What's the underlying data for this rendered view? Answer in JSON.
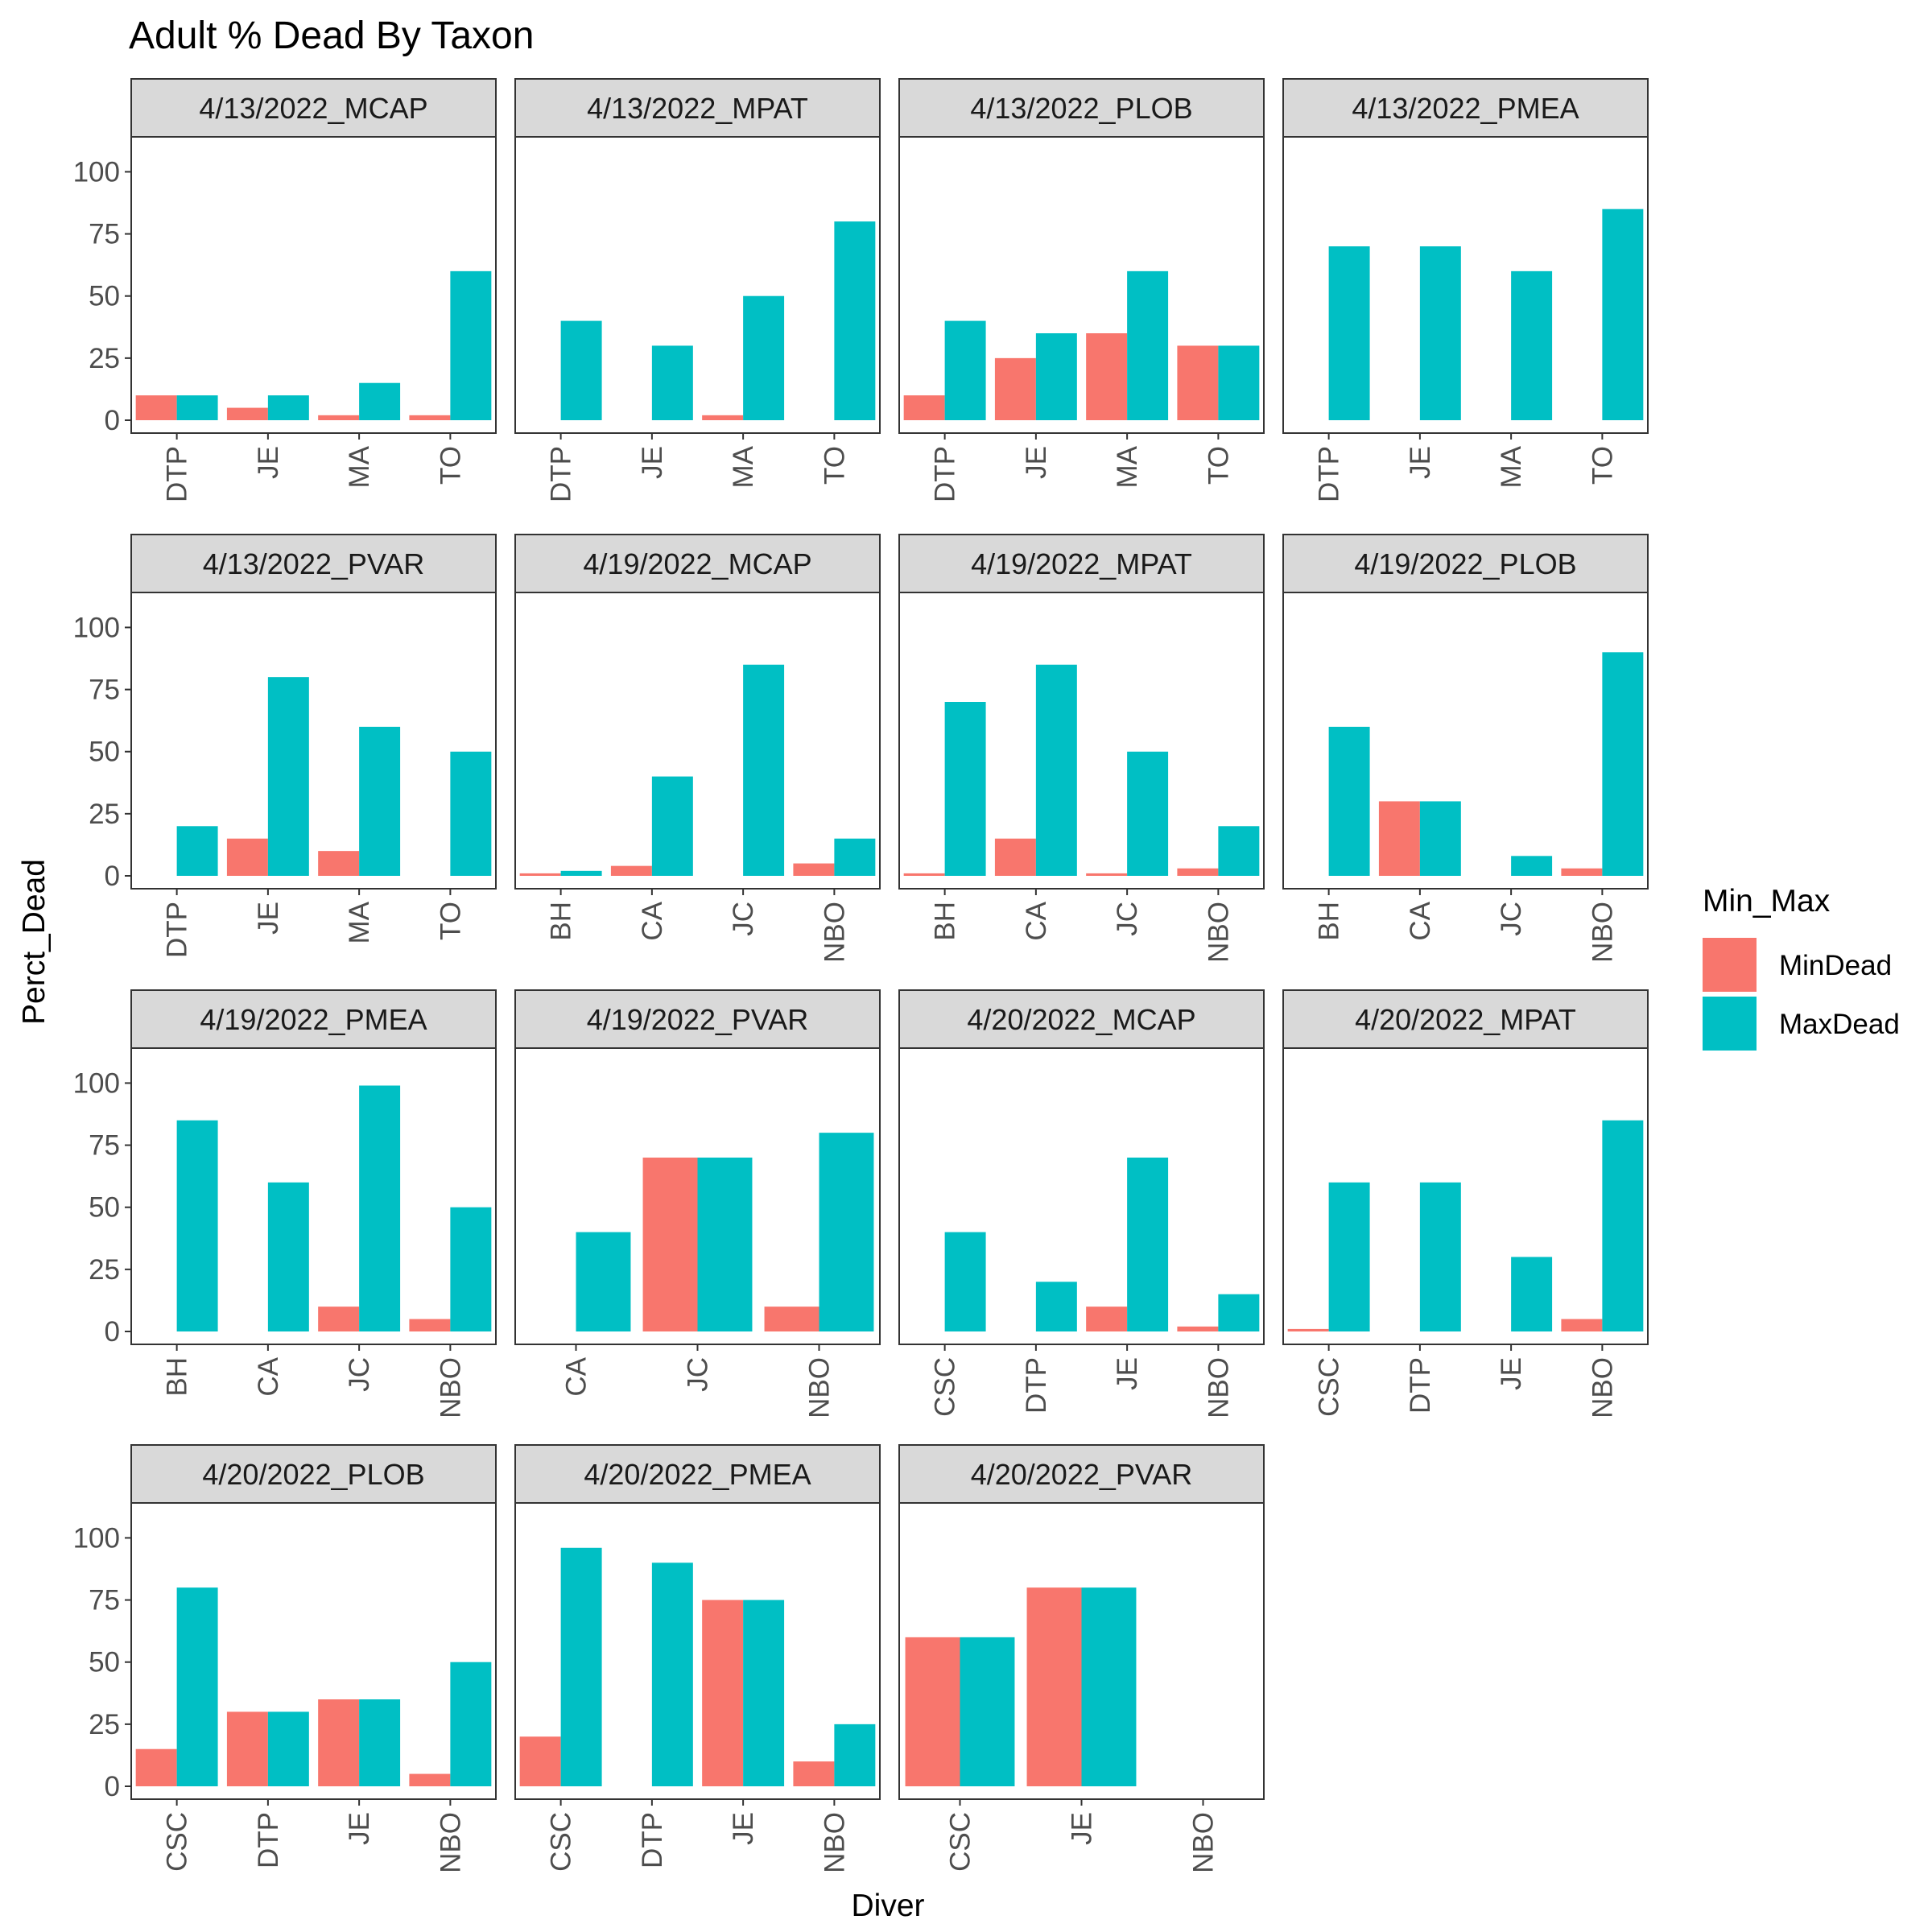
{
  "chart_data": {
    "type": "bar",
    "title": "Adult % Dead By Taxon",
    "xlabel": "Diver",
    "ylabel": "Perct_Dead",
    "ylim": [
      0,
      120
    ],
    "yticks": [
      0,
      25,
      50,
      75,
      100
    ],
    "grid": false,
    "legend": {
      "title": "Min_Max",
      "position": "right",
      "entries": [
        {
          "name": "MinDead",
          "color": "#F8766D"
        },
        {
          "name": "MaxDead",
          "color": "#00BFC4"
        }
      ]
    },
    "facets": [
      {
        "label": "4/13/2022_MCAP",
        "categories": [
          "DTP",
          "JE",
          "MA",
          "TO"
        ],
        "series": [
          {
            "name": "MinDead",
            "values": [
              10,
              5,
              2,
              2
            ]
          },
          {
            "name": "MaxDead",
            "values": [
              10,
              10,
              15,
              60
            ]
          }
        ]
      },
      {
        "label": "4/13/2022_MPAT",
        "categories": [
          "DTP",
          "JE",
          "MA",
          "TO"
        ],
        "series": [
          {
            "name": "MinDead",
            "values": [
              null,
              null,
              2,
              null
            ]
          },
          {
            "name": "MaxDead",
            "values": [
              40,
              30,
              50,
              80
            ]
          }
        ]
      },
      {
        "label": "4/13/2022_PLOB",
        "categories": [
          "DTP",
          "JE",
          "MA",
          "TO"
        ],
        "series": [
          {
            "name": "MinDead",
            "values": [
              10,
              25,
              35,
              30
            ]
          },
          {
            "name": "MaxDead",
            "values": [
              40,
              35,
              60,
              30
            ]
          }
        ]
      },
      {
        "label": "4/13/2022_PMEA",
        "categories": [
          "DTP",
          "JE",
          "MA",
          "TO"
        ],
        "series": [
          {
            "name": "MinDead",
            "values": [
              null,
              null,
              null,
              null
            ]
          },
          {
            "name": "MaxDead",
            "values": [
              70,
              70,
              60,
              85
            ]
          }
        ]
      },
      {
        "label": "4/13/2022_PVAR",
        "categories": [
          "DTP",
          "JE",
          "MA",
          "TO"
        ],
        "series": [
          {
            "name": "MinDead",
            "values": [
              null,
              15,
              10,
              null
            ]
          },
          {
            "name": "MaxDead",
            "values": [
              20,
              80,
              60,
              50
            ]
          }
        ]
      },
      {
        "label": "4/19/2022_MCAP",
        "categories": [
          "BH",
          "CA",
          "JC",
          "NBO"
        ],
        "series": [
          {
            "name": "MinDead",
            "values": [
              1,
              4,
              null,
              5
            ]
          },
          {
            "name": "MaxDead",
            "values": [
              2,
              40,
              85,
              15
            ]
          }
        ]
      },
      {
        "label": "4/19/2022_MPAT",
        "categories": [
          "BH",
          "CA",
          "JC",
          "NBO"
        ],
        "series": [
          {
            "name": "MinDead",
            "values": [
              1,
              15,
              1,
              3
            ]
          },
          {
            "name": "MaxDead",
            "values": [
              70,
              85,
              50,
              20
            ]
          }
        ]
      },
      {
        "label": "4/19/2022_PLOB",
        "categories": [
          "BH",
          "CA",
          "JC",
          "NBO"
        ],
        "series": [
          {
            "name": "MinDead",
            "values": [
              null,
              30,
              null,
              3
            ]
          },
          {
            "name": "MaxDead",
            "values": [
              60,
              30,
              8,
              90
            ]
          }
        ]
      },
      {
        "label": "4/19/2022_PMEA",
        "categories": [
          "BH",
          "CA",
          "JC",
          "NBO"
        ],
        "series": [
          {
            "name": "MinDead",
            "values": [
              null,
              null,
              10,
              5
            ]
          },
          {
            "name": "MaxDead",
            "values": [
              85,
              60,
              99,
              50
            ]
          }
        ]
      },
      {
        "label": "4/19/2022_PVAR",
        "categories": [
          "CA",
          "JC",
          "NBO"
        ],
        "series": [
          {
            "name": "MinDead",
            "values": [
              null,
              70,
              10
            ]
          },
          {
            "name": "MaxDead",
            "values": [
              40,
              70,
              80
            ]
          }
        ]
      },
      {
        "label": "4/20/2022_MCAP",
        "categories": [
          "CSC",
          "DTP",
          "JE",
          "NBO"
        ],
        "series": [
          {
            "name": "MinDead",
            "values": [
              null,
              null,
              10,
              2
            ]
          },
          {
            "name": "MaxDead",
            "values": [
              40,
              20,
              70,
              15
            ]
          }
        ]
      },
      {
        "label": "4/20/2022_MPAT",
        "categories": [
          "CSC",
          "DTP",
          "JE",
          "NBO"
        ],
        "series": [
          {
            "name": "MinDead",
            "values": [
              1,
              null,
              null,
              5
            ]
          },
          {
            "name": "MaxDead",
            "values": [
              60,
              60,
              30,
              85
            ]
          }
        ]
      },
      {
        "label": "4/20/2022_PLOB",
        "categories": [
          "CSC",
          "DTP",
          "JE",
          "NBO"
        ],
        "series": [
          {
            "name": "MinDead",
            "values": [
              15,
              30,
              35,
              5
            ]
          },
          {
            "name": "MaxDead",
            "values": [
              80,
              30,
              35,
              50
            ]
          }
        ]
      },
      {
        "label": "4/20/2022_PMEA",
        "categories": [
          "CSC",
          "DTP",
          "JE",
          "NBO"
        ],
        "series": [
          {
            "name": "MinDead",
            "values": [
              20,
              null,
              75,
              10
            ]
          },
          {
            "name": "MaxDead",
            "values": [
              96,
              90,
              75,
              25
            ]
          }
        ]
      },
      {
        "label": "4/20/2022_PVAR",
        "categories": [
          "CSC",
          "JE",
          "NBO"
        ],
        "series": [
          {
            "name": "MinDead",
            "values": [
              60,
              80,
              null
            ]
          },
          {
            "name": "MaxDead",
            "values": [
              60,
              80,
              null
            ]
          }
        ]
      }
    ]
  }
}
